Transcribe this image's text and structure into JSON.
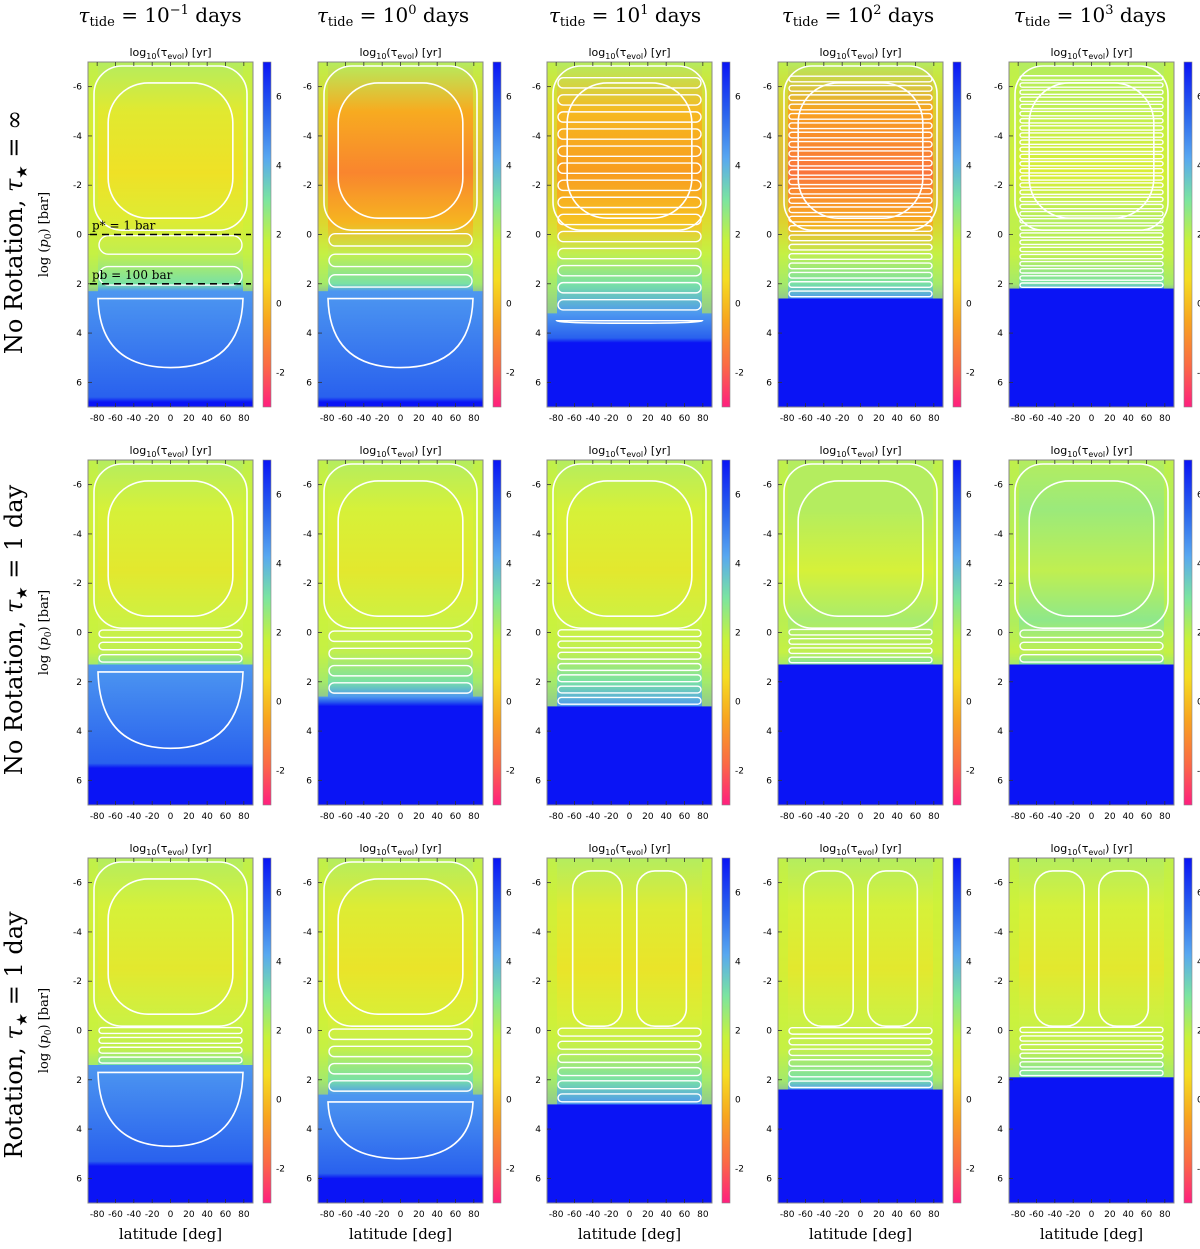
{
  "figure": {
    "column_titles": [
      {
        "base": "τ",
        "sub": "tide",
        "eq": " = 10",
        "exp": "−1",
        "unit": " days"
      },
      {
        "base": "τ",
        "sub": "tide",
        "eq": " = 10",
        "exp": "0",
        "unit": " days"
      },
      {
        "base": "τ",
        "sub": "tide",
        "eq": " = 10",
        "exp": "1",
        "unit": " days"
      },
      {
        "base": "τ",
        "sub": "tide",
        "eq": " = 10",
        "exp": "2",
        "unit": " days"
      },
      {
        "base": "τ",
        "sub": "tide",
        "eq": " = 10",
        "exp": "3",
        "unit": " days"
      }
    ],
    "row_titles": [
      {
        "pre": "No Rotation, ",
        "sym": "τ",
        "sub": "★",
        "post": " = ∞"
      },
      {
        "pre": "No Rotation, ",
        "sym": "τ",
        "sub": "★",
        "post": " = 1 day"
      },
      {
        "pre": "Rotation, ",
        "sym": "τ",
        "sub": "★",
        "post": " = 1 day"
      }
    ],
    "panel_title": {
      "pre": "log",
      "sub": "10",
      "mid": "(τ",
      "sub2": "evol",
      "post": ") [yr]"
    },
    "ylabel": {
      "pre": "log (",
      "p": "p",
      "sub": "0",
      "post": ")  [bar]"
    },
    "xlabel": "latitude [deg]",
    "annotations": [
      {
        "text": "p* = 1 bar",
        "log_p": 0
      },
      {
        "text": "pb = 100 bar",
        "log_p": 2
      }
    ]
  },
  "chart_data": {
    "type": "heatmap",
    "rows": 3,
    "cols": 5,
    "xlim": [
      -90,
      90
    ],
    "ylim": [
      7,
      -7
    ],
    "x_ticks": [
      "-80",
      "-60",
      "-40",
      "-20",
      "0",
      "20",
      "40",
      "60",
      "80"
    ],
    "y_ticks": [
      "-6",
      "-4",
      "-2",
      "0",
      "2",
      "4",
      "6"
    ],
    "colorbar": {
      "range": [
        -3,
        7
      ],
      "ticks": [
        "6",
        "4",
        "2",
        "0",
        "-2"
      ],
      "colors": [
        "#ff1f7e",
        "#f8991f",
        "#f4dd22",
        "#d4f23a",
        "#7be5a0",
        "#58a8f0",
        "#2a63ee",
        "#0a14f5"
      ]
    },
    "panels": [
      {
        "row": 0,
        "col": 0,
        "core": 0.1,
        "blue_from": 2.3,
        "dark_from": 6.8,
        "bands": 2
      },
      {
        "row": 0,
        "col": 1,
        "core": -1.8,
        "blue_from": 2.3,
        "dark_from": 6.8,
        "bands": 3
      },
      {
        "row": 0,
        "col": 2,
        "core": -1.5,
        "blue_from": 3.2,
        "dark_from": 4.4,
        "bands": 14
      },
      {
        "row": 0,
        "col": 3,
        "core": -2.0,
        "blue_from": 2.6,
        "dark_from": 2.6,
        "bands": 24
      },
      {
        "row": 0,
        "col": 4,
        "core": 1.0,
        "blue_from": 2.2,
        "dark_from": 2.2,
        "bands": 30
      },
      {
        "row": 1,
        "col": 0,
        "core": 0.6,
        "blue_from": 1.3,
        "dark_from": 5.5,
        "bands": 3
      },
      {
        "row": 1,
        "col": 1,
        "core": 0.6,
        "blue_from": 2.6,
        "dark_from": 3.0,
        "bands": 4
      },
      {
        "row": 1,
        "col": 2,
        "core": 0.6,
        "blue_from": 3.0,
        "dark_from": 3.0,
        "bands": 7
      },
      {
        "row": 1,
        "col": 3,
        "core": 1.2,
        "blue_from": 1.3,
        "dark_from": 1.3,
        "bands": 4
      },
      {
        "row": 1,
        "col": 4,
        "core": 1.6,
        "blue_from": 1.3,
        "dark_from": 1.3,
        "bands": 3
      },
      {
        "row": 2,
        "col": 0,
        "core": 0.6,
        "blue_from": 1.4,
        "dark_from": 5.5,
        "bands": 4
      },
      {
        "row": 2,
        "col": 1,
        "core": 0.3,
        "blue_from": 2.6,
        "dark_from": 6.0,
        "bands": 4
      },
      {
        "row": 2,
        "col": 2,
        "core": 0.3,
        "blue_from": 3.0,
        "dark_from": 3.0,
        "bands": 6
      },
      {
        "row": 2,
        "col": 3,
        "core": 0.6,
        "blue_from": 2.4,
        "dark_from": 2.4,
        "bands": 6
      },
      {
        "row": 2,
        "col": 4,
        "core": 0.6,
        "blue_from": 1.9,
        "dark_from": 1.9,
        "bands": 6
      }
    ]
  }
}
